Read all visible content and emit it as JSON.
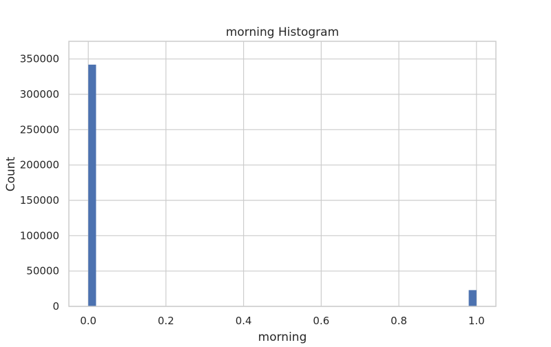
{
  "chart_data": {
    "type": "bar",
    "title": "morning Histogram",
    "xlabel": "morning",
    "ylabel": "Count",
    "xlim": [
      -0.05,
      1.05
    ],
    "ylim": [
      0,
      375000
    ],
    "x_ticks": [
      "0.0",
      "0.2",
      "0.4",
      "0.6",
      "0.8",
      "1.0"
    ],
    "x_tick_values": [
      0.0,
      0.2,
      0.4,
      0.6,
      0.8,
      1.0
    ],
    "y_ticks": [
      "0",
      "50000",
      "100000",
      "150000",
      "200000",
      "250000",
      "300000",
      "350000"
    ],
    "y_tick_values": [
      0,
      50000,
      100000,
      150000,
      200000,
      250000,
      300000,
      350000
    ],
    "grid": true,
    "bin_width": 0.02,
    "bars": [
      {
        "x": 0.0,
        "value": 342000
      },
      {
        "x": 0.98,
        "value": 23000
      }
    ],
    "bar_color": "#4c72b0"
  }
}
